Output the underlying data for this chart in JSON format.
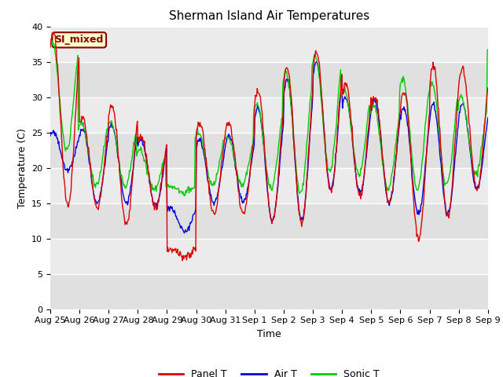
{
  "title": "Sherman Island Air Temperatures",
  "xlabel": "Time",
  "ylabel": "Temperature (C)",
  "ylim": [
    0,
    40
  ],
  "yticks": [
    0,
    5,
    10,
    15,
    20,
    25,
    30,
    35,
    40
  ],
  "legend_labels": [
    "Panel T",
    "Air T",
    "Sonic T"
  ],
  "legend_colors": [
    "#dd0000",
    "#0000dd",
    "#00cc00"
  ],
  "annotation_text": "SI_mixed",
  "annotation_bg": "#ffffcc",
  "annotation_border": "#880000",
  "bg_color": "#e8e8e8",
  "fig_color": "#ffffff",
  "line_width": 1.0,
  "xtick_labels": [
    "Aug 25",
    "Aug 26",
    "Aug 27",
    "Aug 28",
    "Aug 29",
    "Aug 30",
    "Aug 31",
    "Sep 1",
    "Sep 2",
    "Sep 3",
    "Sep 4",
    "Sep 5",
    "Sep 6",
    "Sep 7",
    "Sep 8",
    "Sep 9"
  ],
  "num_days": 15,
  "title_fontsize": 11,
  "label_fontsize": 9,
  "tick_fontsize": 8
}
